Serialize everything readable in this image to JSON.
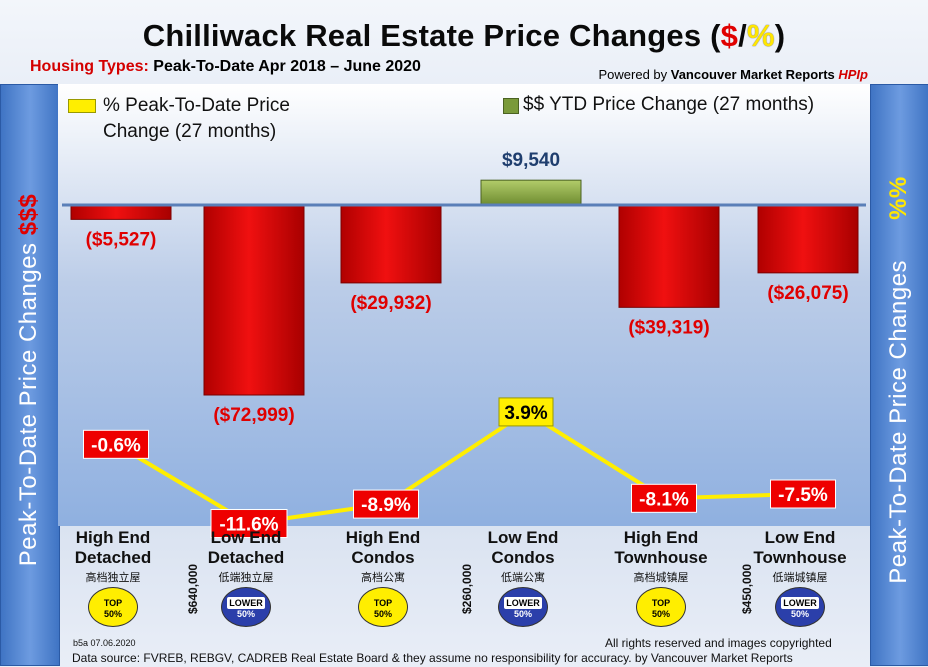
{
  "header": {
    "title_main": "Chilliwack Real Estate Price Changes (",
    "title_dollar": "$",
    "title_slash": "/",
    "title_percent": "%",
    "title_end": ")",
    "subtitle_label": "Housing Types:",
    "subtitle_text": " Peak-To-Date Apr 2018 – June 2020",
    "powered_prefix": "Powered by ",
    "powered_brand": "Vancouver Market Reports ",
    "powered_hpi": "HPIp"
  },
  "side": {
    "left_text": "Peak-To-Date Price Changes ",
    "left_symbol": "$$$",
    "right_text": "Peak-To-Date  Price  Changes",
    "right_symbol": "%%"
  },
  "legend": {
    "percent_line1": "% Peak-To-Date Price",
    "percent_line2": "Change (27 months)",
    "dollar": "$$ YTD Price Change (27 months)"
  },
  "chart_data": {
    "type": "bar",
    "categories": [
      "High End Detached",
      "Low End Detached",
      "High End Condos",
      "Low End Condos",
      "High End Townhouse",
      "Low End Townhouse"
    ],
    "series": [
      {
        "name": "$$ YTD Price Change (27 months)",
        "type": "bar",
        "values": [
          -5527,
          -72999,
          -29932,
          9540,
          -39319,
          -26075
        ],
        "labels": [
          "($5,527)",
          "($72,999)",
          "($29,932)",
          "$9,540",
          "($39,319)",
          "($26,075)"
        ]
      },
      {
        "name": "% Peak-To-Date Price Change (27 months)",
        "type": "line",
        "values": [
          -0.6,
          -11.6,
          -8.9,
          3.9,
          -8.1,
          -7.5
        ],
        "labels": [
          "-0.6%",
          "-11.6%",
          "-8.9%",
          "3.9%",
          "-8.1%",
          "-7.5%"
        ]
      }
    ],
    "colors": {
      "negative_bar": "#dd0000",
      "positive_bar": "#8aab43",
      "line": "#ffee00",
      "baseline": "#5a7fb8"
    }
  },
  "categories_info": [
    {
      "line1": "High End",
      "line2": "Detached",
      "cn": "高档独立屋",
      "badge": "TOP",
      "badge_pct": "50%"
    },
    {
      "line1": "Low End",
      "line2": "Detached",
      "cn": "低端独立屋",
      "badge": "LOWER",
      "badge_pct": "50%"
    },
    {
      "line1": "High End",
      "line2": "Condos",
      "cn": "高档公寓",
      "badge": "TOP",
      "badge_pct": "50%"
    },
    {
      "line1": "Low End",
      "line2": "Condos",
      "cn": "低端公寓",
      "badge": "LOWER",
      "badge_pct": "50%"
    },
    {
      "line1": "High End",
      "line2": "Townhouse",
      "cn": "高档城镇屋",
      "badge": "TOP",
      "badge_pct": "50%"
    },
    {
      "line1": "Low End",
      "line2": "Townhouse",
      "cn": "低端城镇屋",
      "badge": "LOWER",
      "badge_pct": "50%"
    }
  ],
  "price_points": [
    "$640,000",
    "$260,000",
    "$450,000"
  ],
  "footer": {
    "code": "b5a 07.06.2020",
    "rights": "All rights reserved and  images copyrighted",
    "source": "Data source: FVREB, REBGV, CADREB Real Estate Board & they assume no responsibility for accuracy. by Vancouver Market Reports"
  }
}
